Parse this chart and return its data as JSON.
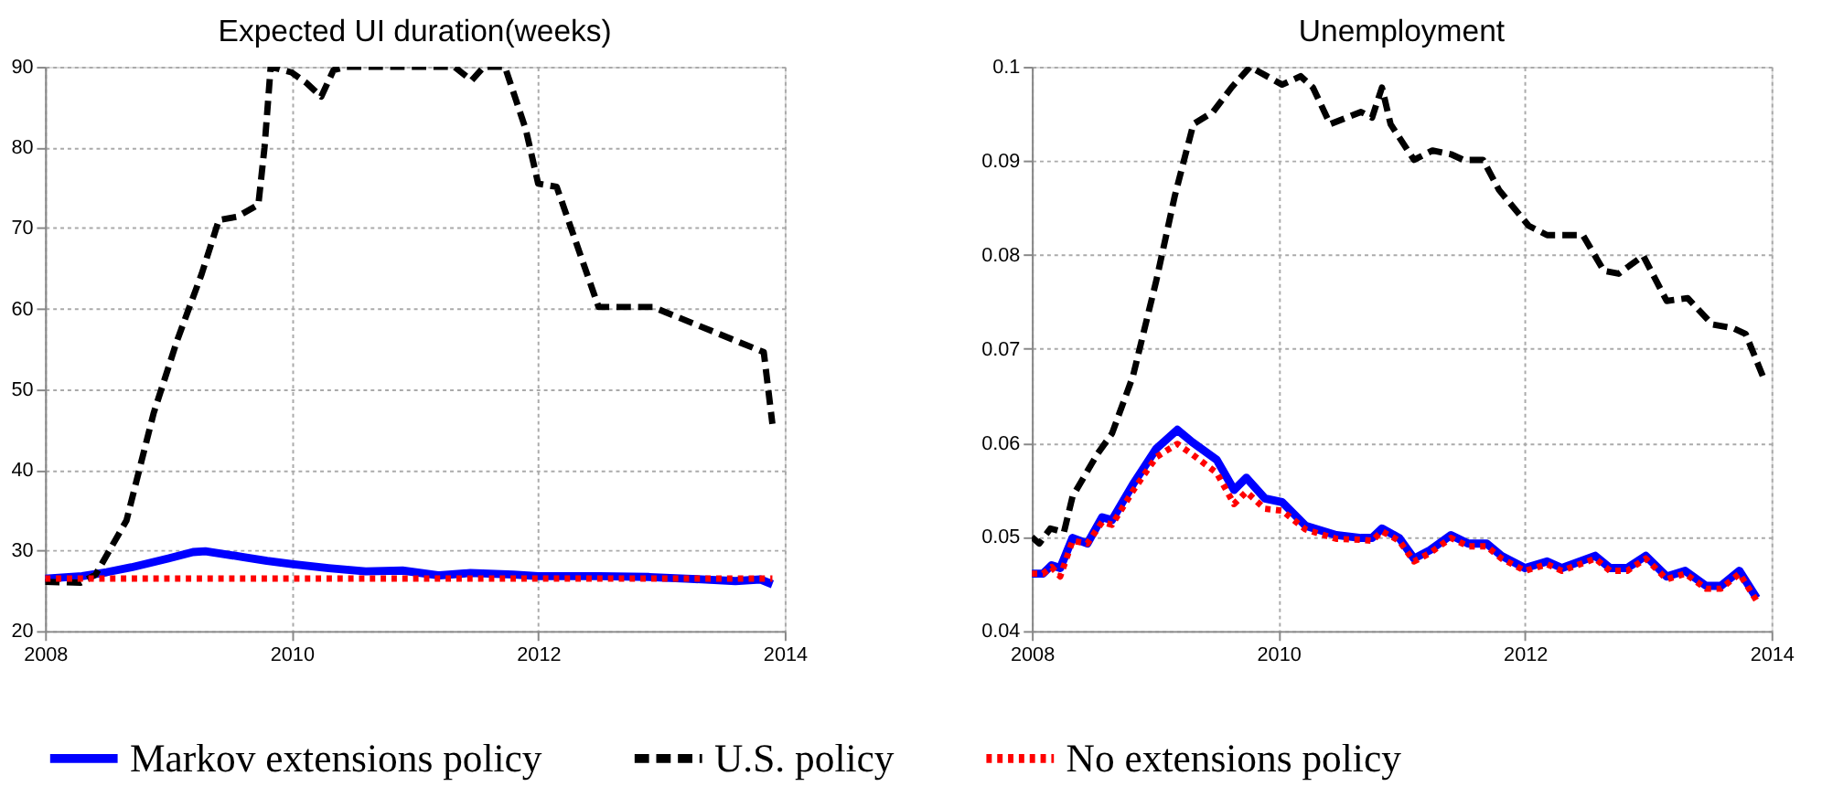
{
  "chart_data": [
    {
      "type": "line",
      "title": "Expected UI duration(weeks)",
      "xlim": [
        2008,
        2014
      ],
      "xticks": [
        2008,
        2010,
        2012,
        2014
      ],
      "ylim": [
        20,
        90
      ],
      "yticks": [
        20,
        30,
        40,
        50,
        60,
        70,
        80,
        90
      ],
      "grid": true,
      "legend": "bottom",
      "series": [
        {
          "name": "Markov extensions policy",
          "color": "#0000ff",
          "line_style": "solid",
          "x": [
            2008,
            2008.3,
            2008.5,
            2008.7,
            2009.0,
            2009.2,
            2009.3,
            2009.6,
            2009.8,
            2010.0,
            2010.3,
            2010.6,
            2010.9,
            2011.2,
            2011.45,
            2011.8,
            2012.0,
            2012.5,
            2012.9,
            2013.2,
            2013.6,
            2013.8,
            2013.9
          ],
          "values": [
            26.5,
            26.8,
            27.3,
            27.9,
            29.0,
            29.8,
            29.9,
            29.2,
            28.7,
            28.3,
            27.8,
            27.4,
            27.5,
            26.9,
            27.2,
            27.0,
            26.8,
            26.8,
            26.7,
            26.5,
            26.2,
            26.4,
            25.8
          ]
        },
        {
          "name": "U.S. policy",
          "color": "#000000",
          "line_style": "dashed",
          "x": [
            2008,
            2008.29,
            2008.41,
            2008.66,
            2008.88,
            2009.07,
            2009.27,
            2009.41,
            2009.56,
            2009.73,
            2009.78,
            2009.83,
            2010.0,
            2010.12,
            2010.24,
            2010.34,
            2010.44,
            2011.32,
            2011.46,
            2011.56,
            2011.73,
            2011.9,
            2012.0,
            2012.15,
            2012.49,
            2012.93,
            2013.46,
            2013.83,
            2013.9
          ],
          "values": [
            26.1,
            26,
            27,
            33.7,
            47,
            56,
            64.3,
            71,
            71.4,
            72.9,
            80,
            90,
            89.3,
            88,
            86.3,
            89.6,
            90,
            90,
            88.3,
            90,
            90,
            82.2,
            75.5,
            75.1,
            60.2,
            60.2,
            56.9,
            54.6,
            45.7
          ]
        },
        {
          "name": "No extensions policy",
          "color": "#ff0000",
          "line_style": "dotted",
          "x": [
            2008,
            2013.9
          ],
          "values": [
            26.5,
            26.5
          ]
        }
      ]
    },
    {
      "type": "line",
      "title": "Unemployment",
      "xlim": [
        2008,
        2014
      ],
      "xticks": [
        2008,
        2010,
        2012,
        2014
      ],
      "ylim": [
        0.04,
        0.1
      ],
      "yticks": [
        0.04,
        0.05,
        0.06,
        0.07,
        0.08,
        0.09,
        0.1
      ],
      "grid": true,
      "legend": "bottom",
      "series": [
        {
          "name": "Markov extensions policy",
          "color": "#0000ff",
          "line_style": "solid",
          "x": [
            2008,
            2008.09,
            2008.16,
            2008.23,
            2008.33,
            2008.45,
            2008.57,
            2008.65,
            2008.82,
            2009.01,
            2009.18,
            2009.3,
            2009.5,
            2009.64,
            2009.74,
            2009.89,
            2010.03,
            2010.22,
            2010.47,
            2010.67,
            2010.76,
            2010.84,
            2010.98,
            2011.1,
            2011.23,
            2011.4,
            2011.54,
            2011.69,
            2011.81,
            2012.0,
            2012.18,
            2012.3,
            2012.57,
            2012.69,
            2012.83,
            2012.98,
            2013.15,
            2013.3,
            2013.47,
            2013.59,
            2013.74,
            2013.88
          ],
          "values": [
            0.0461,
            0.0461,
            0.047,
            0.0467,
            0.0499,
            0.0493,
            0.0521,
            0.0518,
            0.0556,
            0.0594,
            0.0614,
            0.0601,
            0.0582,
            0.055,
            0.0563,
            0.0541,
            0.0537,
            0.0512,
            0.0502,
            0.0499,
            0.0499,
            0.0509,
            0.0499,
            0.0477,
            0.0486,
            0.0502,
            0.0493,
            0.0493,
            0.048,
            0.0467,
            0.0474,
            0.0467,
            0.048,
            0.0467,
            0.0467,
            0.048,
            0.0458,
            0.0464,
            0.0448,
            0.0448,
            0.0464,
            0.0435
          ]
        },
        {
          "name": "U.S. policy",
          "color": "#000000",
          "line_style": "dashed",
          "x": [
            2008,
            2008.06,
            2008.15,
            2008.26,
            2008.33,
            2008.53,
            2008.65,
            2008.82,
            2009.01,
            2009.16,
            2009.31,
            2009.47,
            2009.62,
            2009.77,
            2010.03,
            2010.18,
            2010.28,
            2010.42,
            2010.67,
            2010.76,
            2010.84,
            2010.91,
            2011.1,
            2011.25,
            2011.4,
            2011.5,
            2011.66,
            2011.79,
            2012.03,
            2012.18,
            2012.47,
            2012.64,
            2012.76,
            2012.96,
            2013.15,
            2013.32,
            2013.52,
            2013.69,
            2013.79,
            2013.93
          ],
          "values": [
            0.05,
            0.0493,
            0.0509,
            0.0505,
            0.0543,
            0.0588,
            0.061,
            0.0671,
            0.0773,
            0.0863,
            0.0939,
            0.0952,
            0.0978,
            0.1,
            0.0981,
            0.099,
            0.0978,
            0.0939,
            0.0952,
            0.0946,
            0.0978,
            0.0939,
            0.0901,
            0.0911,
            0.0907,
            0.0901,
            0.0901,
            0.0869,
            0.0831,
            0.0821,
            0.0821,
            0.0783,
            0.078,
            0.0799,
            0.0751,
            0.0754,
            0.0726,
            0.0722,
            0.0716,
            0.0671
          ]
        },
        {
          "name": "No extensions policy",
          "color": "#ff0000",
          "line_style": "dotted",
          "x": [
            2008,
            2008.09,
            2008.16,
            2008.23,
            2008.33,
            2008.45,
            2008.57,
            2008.65,
            2008.82,
            2009.01,
            2009.18,
            2009.3,
            2009.5,
            2009.64,
            2009.74,
            2009.89,
            2010.03,
            2010.22,
            2010.47,
            2010.67,
            2010.76,
            2010.84,
            2010.98,
            2011.1,
            2011.23,
            2011.4,
            2011.54,
            2011.69,
            2011.81,
            2012.0,
            2012.18,
            2012.3,
            2012.57,
            2012.69,
            2012.83,
            2012.98,
            2013.15,
            2013.3,
            2013.47,
            2013.59,
            2013.74,
            2013.88
          ],
          "values": [
            0.0461,
            0.0461,
            0.0468,
            0.0458,
            0.0496,
            0.0493,
            0.0516,
            0.0513,
            0.0549,
            0.0585,
            0.0599,
            0.0588,
            0.0568,
            0.0535,
            0.0548,
            0.053,
            0.0528,
            0.0508,
            0.0498,
            0.0497,
            0.0496,
            0.0506,
            0.0496,
            0.0474,
            0.0483,
            0.0499,
            0.049,
            0.049,
            0.0477,
            0.0464,
            0.0471,
            0.0464,
            0.0477,
            0.0464,
            0.0464,
            0.0477,
            0.0455,
            0.0461,
            0.0445,
            0.0445,
            0.0461,
            0.0432
          ]
        }
      ]
    }
  ]
}
